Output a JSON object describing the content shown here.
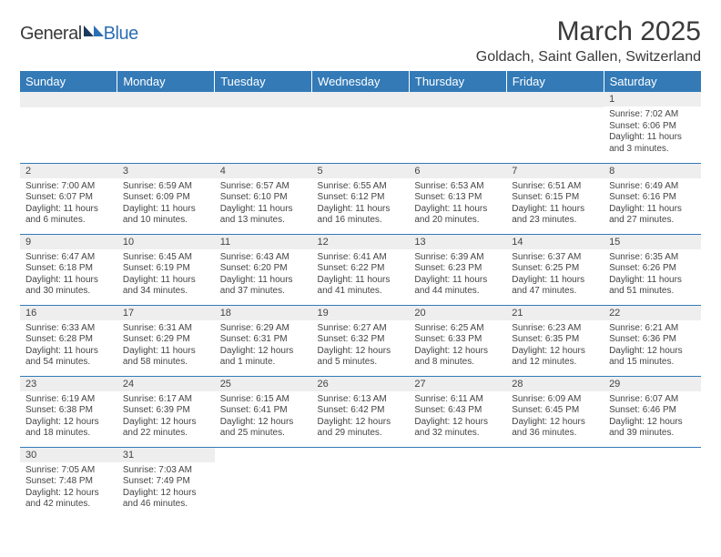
{
  "header": {
    "logo_a": "General",
    "logo_b": "Blue",
    "title": "March 2025",
    "location": "Goldach, Saint Gallen, Switzerland"
  },
  "columns": [
    "Sunday",
    "Monday",
    "Tuesday",
    "Wednesday",
    "Thursday",
    "Friday",
    "Saturday"
  ],
  "colors": {
    "header_bg": "#337ab7",
    "header_fg": "#ffffff",
    "daynum_bg": "#eeeeee",
    "text": "#444444",
    "rule": "#337ab7"
  },
  "weeks": [
    [
      null,
      null,
      null,
      null,
      null,
      null,
      {
        "n": "1",
        "sunrise": "Sunrise: 7:02 AM",
        "sunset": "Sunset: 6:06 PM",
        "daylight": "Daylight: 11 hours and 3 minutes."
      }
    ],
    [
      {
        "n": "2",
        "sunrise": "Sunrise: 7:00 AM",
        "sunset": "Sunset: 6:07 PM",
        "daylight": "Daylight: 11 hours and 6 minutes."
      },
      {
        "n": "3",
        "sunrise": "Sunrise: 6:59 AM",
        "sunset": "Sunset: 6:09 PM",
        "daylight": "Daylight: 11 hours and 10 minutes."
      },
      {
        "n": "4",
        "sunrise": "Sunrise: 6:57 AM",
        "sunset": "Sunset: 6:10 PM",
        "daylight": "Daylight: 11 hours and 13 minutes."
      },
      {
        "n": "5",
        "sunrise": "Sunrise: 6:55 AM",
        "sunset": "Sunset: 6:12 PM",
        "daylight": "Daylight: 11 hours and 16 minutes."
      },
      {
        "n": "6",
        "sunrise": "Sunrise: 6:53 AM",
        "sunset": "Sunset: 6:13 PM",
        "daylight": "Daylight: 11 hours and 20 minutes."
      },
      {
        "n": "7",
        "sunrise": "Sunrise: 6:51 AM",
        "sunset": "Sunset: 6:15 PM",
        "daylight": "Daylight: 11 hours and 23 minutes."
      },
      {
        "n": "8",
        "sunrise": "Sunrise: 6:49 AM",
        "sunset": "Sunset: 6:16 PM",
        "daylight": "Daylight: 11 hours and 27 minutes."
      }
    ],
    [
      {
        "n": "9",
        "sunrise": "Sunrise: 6:47 AM",
        "sunset": "Sunset: 6:18 PM",
        "daylight": "Daylight: 11 hours and 30 minutes."
      },
      {
        "n": "10",
        "sunrise": "Sunrise: 6:45 AM",
        "sunset": "Sunset: 6:19 PM",
        "daylight": "Daylight: 11 hours and 34 minutes."
      },
      {
        "n": "11",
        "sunrise": "Sunrise: 6:43 AM",
        "sunset": "Sunset: 6:20 PM",
        "daylight": "Daylight: 11 hours and 37 minutes."
      },
      {
        "n": "12",
        "sunrise": "Sunrise: 6:41 AM",
        "sunset": "Sunset: 6:22 PM",
        "daylight": "Daylight: 11 hours and 41 minutes."
      },
      {
        "n": "13",
        "sunrise": "Sunrise: 6:39 AM",
        "sunset": "Sunset: 6:23 PM",
        "daylight": "Daylight: 11 hours and 44 minutes."
      },
      {
        "n": "14",
        "sunrise": "Sunrise: 6:37 AM",
        "sunset": "Sunset: 6:25 PM",
        "daylight": "Daylight: 11 hours and 47 minutes."
      },
      {
        "n": "15",
        "sunrise": "Sunrise: 6:35 AM",
        "sunset": "Sunset: 6:26 PM",
        "daylight": "Daylight: 11 hours and 51 minutes."
      }
    ],
    [
      {
        "n": "16",
        "sunrise": "Sunrise: 6:33 AM",
        "sunset": "Sunset: 6:28 PM",
        "daylight": "Daylight: 11 hours and 54 minutes."
      },
      {
        "n": "17",
        "sunrise": "Sunrise: 6:31 AM",
        "sunset": "Sunset: 6:29 PM",
        "daylight": "Daylight: 11 hours and 58 minutes."
      },
      {
        "n": "18",
        "sunrise": "Sunrise: 6:29 AM",
        "sunset": "Sunset: 6:31 PM",
        "daylight": "Daylight: 12 hours and 1 minute."
      },
      {
        "n": "19",
        "sunrise": "Sunrise: 6:27 AM",
        "sunset": "Sunset: 6:32 PM",
        "daylight": "Daylight: 12 hours and 5 minutes."
      },
      {
        "n": "20",
        "sunrise": "Sunrise: 6:25 AM",
        "sunset": "Sunset: 6:33 PM",
        "daylight": "Daylight: 12 hours and 8 minutes."
      },
      {
        "n": "21",
        "sunrise": "Sunrise: 6:23 AM",
        "sunset": "Sunset: 6:35 PM",
        "daylight": "Daylight: 12 hours and 12 minutes."
      },
      {
        "n": "22",
        "sunrise": "Sunrise: 6:21 AM",
        "sunset": "Sunset: 6:36 PM",
        "daylight": "Daylight: 12 hours and 15 minutes."
      }
    ],
    [
      {
        "n": "23",
        "sunrise": "Sunrise: 6:19 AM",
        "sunset": "Sunset: 6:38 PM",
        "daylight": "Daylight: 12 hours and 18 minutes."
      },
      {
        "n": "24",
        "sunrise": "Sunrise: 6:17 AM",
        "sunset": "Sunset: 6:39 PM",
        "daylight": "Daylight: 12 hours and 22 minutes."
      },
      {
        "n": "25",
        "sunrise": "Sunrise: 6:15 AM",
        "sunset": "Sunset: 6:41 PM",
        "daylight": "Daylight: 12 hours and 25 minutes."
      },
      {
        "n": "26",
        "sunrise": "Sunrise: 6:13 AM",
        "sunset": "Sunset: 6:42 PM",
        "daylight": "Daylight: 12 hours and 29 minutes."
      },
      {
        "n": "27",
        "sunrise": "Sunrise: 6:11 AM",
        "sunset": "Sunset: 6:43 PM",
        "daylight": "Daylight: 12 hours and 32 minutes."
      },
      {
        "n": "28",
        "sunrise": "Sunrise: 6:09 AM",
        "sunset": "Sunset: 6:45 PM",
        "daylight": "Daylight: 12 hours and 36 minutes."
      },
      {
        "n": "29",
        "sunrise": "Sunrise: 6:07 AM",
        "sunset": "Sunset: 6:46 PM",
        "daylight": "Daylight: 12 hours and 39 minutes."
      }
    ],
    [
      {
        "n": "30",
        "sunrise": "Sunrise: 7:05 AM",
        "sunset": "Sunset: 7:48 PM",
        "daylight": "Daylight: 12 hours and 42 minutes."
      },
      {
        "n": "31",
        "sunrise": "Sunrise: 7:03 AM",
        "sunset": "Sunset: 7:49 PM",
        "daylight": "Daylight: 12 hours and 46 minutes."
      },
      null,
      null,
      null,
      null,
      null
    ]
  ]
}
